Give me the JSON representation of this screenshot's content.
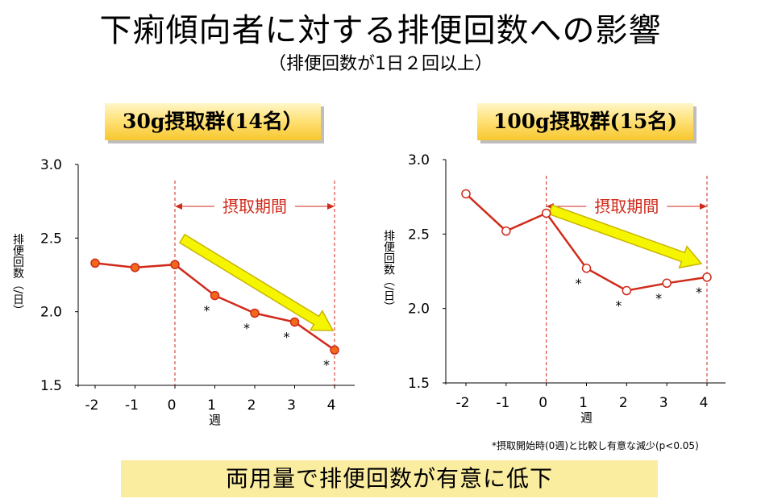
{
  "title": "下痢傾向者に対する排便回数への影響",
  "subtitle": "（排便回数が1日２回以上）",
  "footnote": "*摂取開始時(0週)と比較し有意な減少(p<0.05)",
  "conclusion": "両用量で排便回数が有意に低下",
  "colors": {
    "line": "#d02a1a",
    "marker_fill_left": "#f06a1a",
    "marker_fill_right": "#ffffff",
    "period_line": "#d02a1a",
    "arrow": "#f5f500",
    "label_bg": "#ffe27a",
    "conclusion_bg": "#fbeda0"
  },
  "chart_data": [
    {
      "type": "line",
      "group_label": "30g摂取群(14名）",
      "x": [
        -2,
        -1,
        0,
        1,
        2,
        3,
        4
      ],
      "x_tick_labels": [
        "-2",
        "-1",
        "0",
        "1",
        "2",
        "3",
        "4"
      ],
      "values": [
        2.33,
        2.3,
        2.32,
        2.11,
        1.99,
        1.93,
        1.74
      ],
      "y_tick_labels": [
        "3.0",
        "2.5",
        "2.0",
        "1.5"
      ],
      "ylim": [
        1.5,
        3.0
      ],
      "xlabel": "週",
      "ylabel": "排便回数（/日）",
      "significant_weeks": [
        1,
        2,
        3,
        4
      ],
      "significance_mark": "*",
      "period_label": "摂取期間",
      "period_range": [
        0,
        4
      ],
      "marker": "filled-circle"
    },
    {
      "type": "line",
      "group_label": "100g摂取群(15名)",
      "x": [
        -2,
        -1,
        0,
        1,
        2,
        3,
        4
      ],
      "x_tick_labels": [
        "-2",
        "-1",
        "0",
        "1",
        "2",
        "3",
        "4"
      ],
      "values": [
        2.77,
        2.52,
        2.64,
        2.27,
        2.12,
        2.17,
        2.21
      ],
      "y_tick_labels": [
        "3.0",
        "2.5",
        "2.0",
        "1.5"
      ],
      "ylim": [
        1.5,
        3.0
      ],
      "xlabel": "週",
      "ylabel": "排便回数（/日）",
      "significant_weeks": [
        1,
        2,
        3,
        4
      ],
      "significance_mark": "*",
      "period_label": "摂取期間",
      "period_range": [
        0,
        4
      ],
      "marker": "open-circle"
    }
  ]
}
